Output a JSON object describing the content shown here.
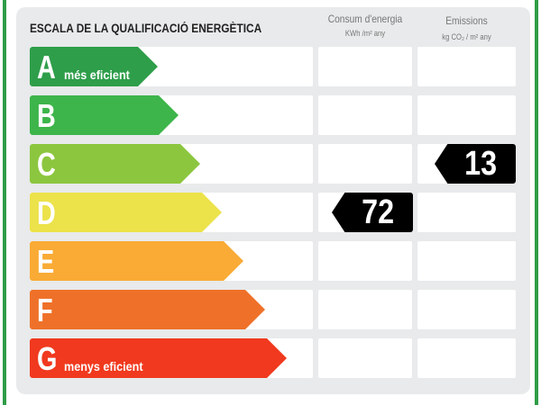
{
  "title": "ESCALA DE LA QUALIFICACIÓ ENERGÈTICA",
  "columns": {
    "consum": {
      "label": "Consum d'energia",
      "unit": "KWh /m² any"
    },
    "emissions": {
      "label": "Emissions",
      "unit": "kg CO₂ / m² any"
    }
  },
  "classes": [
    {
      "letter": "A",
      "sub": "més eficient",
      "color": "#2e9e4a"
    },
    {
      "letter": "B",
      "sub": "",
      "color": "#3db54a"
    },
    {
      "letter": "C",
      "sub": "",
      "color": "#8cc63f"
    },
    {
      "letter": "D",
      "sub": "",
      "color": "#ece24a"
    },
    {
      "letter": "E",
      "sub": "",
      "color": "#f9ab35"
    },
    {
      "letter": "F",
      "sub": "",
      "color": "#ef7129"
    },
    {
      "letter": "G",
      "sub": "menys eficient",
      "color": "#f0391e"
    }
  ],
  "rating": {
    "consum": {
      "value": "72",
      "class": "D"
    },
    "emissions": {
      "value": "13",
      "class": "C"
    }
  }
}
